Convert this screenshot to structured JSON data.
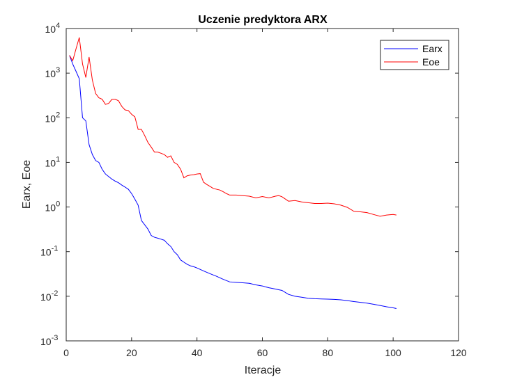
{
  "chart_data": {
    "type": "line",
    "title": "Uczenie predyktora ARX",
    "xlabel": "Iteracje",
    "ylabel": "Earx, Eoe",
    "xlim": [
      0,
      120
    ],
    "ylim": [
      0.001,
      10000
    ],
    "yscale": "log",
    "grid": false,
    "legend_position": "top-right",
    "x_ticks": [
      {
        "value": 0,
        "label": "0"
      },
      {
        "value": 20,
        "label": "20"
      },
      {
        "value": 40,
        "label": "40"
      },
      {
        "value": 60,
        "label": "60"
      },
      {
        "value": 80,
        "label": "80"
      },
      {
        "value": 100,
        "label": "100"
      },
      {
        "value": 120,
        "label": "120"
      }
    ],
    "y_ticks": [
      {
        "value": 0.001,
        "base": "10",
        "exp": "-3"
      },
      {
        "value": 0.01,
        "base": "10",
        "exp": "-2"
      },
      {
        "value": 0.1,
        "base": "10",
        "exp": "-1"
      },
      {
        "value": 1,
        "base": "10",
        "exp": "0"
      },
      {
        "value": 10,
        "base": "10",
        "exp": "1"
      },
      {
        "value": 100,
        "base": "10",
        "exp": "2"
      },
      {
        "value": 1000,
        "base": "10",
        "exp": "3"
      },
      {
        "value": 10000,
        "base": "10",
        "exp": "4"
      }
    ],
    "series": [
      {
        "name": "Earx",
        "color": "#0000ff",
        "points": [
          [
            1,
            2500
          ],
          [
            2,
            1600
          ],
          [
            3,
            1100
          ],
          [
            4,
            750
          ],
          [
            5,
            100
          ],
          [
            6,
            85
          ],
          [
            7,
            25
          ],
          [
            8,
            15
          ],
          [
            9,
            11
          ],
          [
            10,
            10
          ],
          [
            11,
            7
          ],
          [
            12,
            5.5
          ],
          [
            13,
            4.8
          ],
          [
            14,
            4.2
          ],
          [
            15,
            3.8
          ],
          [
            16,
            3.5
          ],
          [
            17,
            3.1
          ],
          [
            18,
            2.8
          ],
          [
            19,
            2.5
          ],
          [
            20,
            2
          ],
          [
            21,
            1.5
          ],
          [
            22,
            1.1
          ],
          [
            23,
            0.5
          ],
          [
            24,
            0.4
          ],
          [
            25,
            0.32
          ],
          [
            26,
            0.23
          ],
          [
            27,
            0.21
          ],
          [
            28,
            0.2
          ],
          [
            29,
            0.19
          ],
          [
            30,
            0.18
          ],
          [
            31,
            0.15
          ],
          [
            32,
            0.13
          ],
          [
            33,
            0.1
          ],
          [
            34,
            0.085
          ],
          [
            35,
            0.065
          ],
          [
            36,
            0.058
          ],
          [
            37,
            0.052
          ],
          [
            38,
            0.048
          ],
          [
            39,
            0.046
          ],
          [
            40,
            0.043
          ],
          [
            42,
            0.037
          ],
          [
            44,
            0.032
          ],
          [
            46,
            0.028
          ],
          [
            48,
            0.024
          ],
          [
            50,
            0.021
          ],
          [
            52,
            0.0205
          ],
          [
            54,
            0.02
          ],
          [
            56,
            0.0195
          ],
          [
            58,
            0.018
          ],
          [
            60,
            0.017
          ],
          [
            62,
            0.0155
          ],
          [
            64,
            0.0145
          ],
          [
            66,
            0.0135
          ],
          [
            68,
            0.011
          ],
          [
            70,
            0.01
          ],
          [
            72,
            0.0095
          ],
          [
            74,
            0.009
          ],
          [
            76,
            0.0088
          ],
          [
            78,
            0.0087
          ],
          [
            80,
            0.0086
          ],
          [
            82,
            0.0085
          ],
          [
            84,
            0.0083
          ],
          [
            86,
            0.008
          ],
          [
            88,
            0.0076
          ],
          [
            90,
            0.0073
          ],
          [
            92,
            0.007
          ],
          [
            94,
            0.0066
          ],
          [
            96,
            0.0062
          ],
          [
            98,
            0.0058
          ],
          [
            100,
            0.0055
          ],
          [
            101,
            0.0053
          ]
        ]
      },
      {
        "name": "Eoe",
        "color": "#ff0000",
        "points": [
          [
            1,
            2500
          ],
          [
            2,
            1900
          ],
          [
            3,
            3500
          ],
          [
            4,
            6300
          ],
          [
            5,
            1600
          ],
          [
            6,
            800
          ],
          [
            7,
            2300
          ],
          [
            8,
            700
          ],
          [
            9,
            350
          ],
          [
            10,
            280
          ],
          [
            11,
            260
          ],
          [
            12,
            200
          ],
          [
            13,
            210
          ],
          [
            14,
            260
          ],
          [
            15,
            260
          ],
          [
            16,
            240
          ],
          [
            17,
            180
          ],
          [
            18,
            150
          ],
          [
            19,
            145
          ],
          [
            20,
            120
          ],
          [
            21,
            105
          ],
          [
            22,
            55
          ],
          [
            23,
            55
          ],
          [
            24,
            40
          ],
          [
            25,
            28
          ],
          [
            26,
            22
          ],
          [
            27,
            17
          ],
          [
            28,
            17
          ],
          [
            29,
            16
          ],
          [
            30,
            15
          ],
          [
            31,
            13
          ],
          [
            32,
            14
          ],
          [
            33,
            10
          ],
          [
            34,
            9
          ],
          [
            35,
            7
          ],
          [
            36,
            4.5
          ],
          [
            37,
            5
          ],
          [
            38,
            5.2
          ],
          [
            39,
            5.3
          ],
          [
            40,
            5.5
          ],
          [
            41,
            5.6
          ],
          [
            42,
            3.6
          ],
          [
            43,
            3.2
          ],
          [
            44,
            2.9
          ],
          [
            45,
            2.6
          ],
          [
            46,
            2.5
          ],
          [
            47,
            2.4
          ],
          [
            48,
            2.2
          ],
          [
            49,
            2
          ],
          [
            50,
            1.85
          ],
          [
            52,
            1.85
          ],
          [
            54,
            1.8
          ],
          [
            56,
            1.75
          ],
          [
            58,
            1.6
          ],
          [
            60,
            1.72
          ],
          [
            62,
            1.6
          ],
          [
            64,
            1.75
          ],
          [
            65,
            1.8
          ],
          [
            66,
            1.7
          ],
          [
            68,
            1.35
          ],
          [
            70,
            1.4
          ],
          [
            72,
            1.3
          ],
          [
            74,
            1.25
          ],
          [
            76,
            1.2
          ],
          [
            78,
            1.2
          ],
          [
            80,
            1.22
          ],
          [
            82,
            1.18
          ],
          [
            84,
            1.1
          ],
          [
            86,
            0.98
          ],
          [
            88,
            0.8
          ],
          [
            90,
            0.78
          ],
          [
            92,
            0.75
          ],
          [
            94,
            0.68
          ],
          [
            96,
            0.62
          ],
          [
            98,
            0.66
          ],
          [
            100,
            0.68
          ],
          [
            101,
            0.66
          ]
        ]
      }
    ]
  }
}
